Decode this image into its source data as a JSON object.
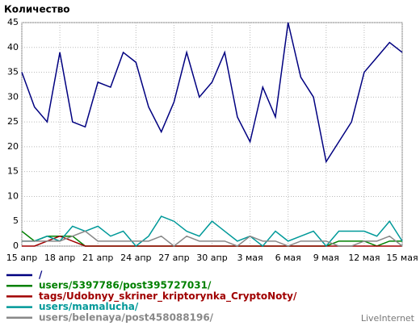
{
  "chart_data": {
    "type": "line",
    "title": "Количество",
    "brand": "LiveInternet",
    "categories": [
      "15 апр",
      null,
      null,
      "18 апр",
      null,
      null,
      "21 апр",
      null,
      null,
      "24 апр",
      null,
      null,
      "27 апр",
      null,
      null,
      "30 апр",
      null,
      null,
      "3 мая",
      null,
      null,
      "6 мая",
      null,
      null,
      "9 мая",
      null,
      null,
      "12 мая",
      null,
      null,
      "15 мая"
    ],
    "ylim": [
      0,
      45
    ],
    "yticks": [
      0,
      5,
      10,
      15,
      20,
      25,
      30,
      35,
      40,
      45
    ],
    "grid": true,
    "series": [
      {
        "name": "/",
        "color": "#000080",
        "values": [
          35,
          28,
          25,
          39,
          25,
          24,
          33,
          32,
          39,
          37,
          28,
          23,
          29,
          39,
          30,
          33,
          39,
          26,
          21,
          32,
          26,
          45,
          34,
          30,
          17,
          21,
          25,
          35,
          38,
          41,
          39
        ]
      },
      {
        "name": "users/5397786/post395727031/",
        "color": "#008000",
        "values": [
          3,
          1,
          2,
          2,
          2,
          0,
          0,
          0,
          0,
          0,
          0,
          0,
          0,
          0,
          0,
          0,
          0,
          0,
          0,
          0,
          0,
          0,
          0,
          0,
          0,
          1,
          1,
          1,
          0,
          1,
          1
        ]
      },
      {
        "name": "tags/Udobnyy_skriner_kriptorynka_CryptoNoty/",
        "color": "#a00000",
        "values": [
          0,
          0,
          1,
          2,
          1,
          0,
          0,
          0,
          0,
          0,
          0,
          0,
          0,
          0,
          0,
          0,
          0,
          0,
          0,
          0,
          0,
          0,
          0,
          0,
          0,
          0,
          0,
          0,
          0,
          0,
          0
        ]
      },
      {
        "name": "users/mamalucha/",
        "color": "#009999",
        "values": [
          1,
          1,
          2,
          1,
          4,
          3,
          4,
          2,
          3,
          0,
          2,
          6,
          5,
          3,
          2,
          5,
          3,
          1,
          2,
          0,
          3,
          1,
          2,
          3,
          0,
          3,
          3,
          3,
          2,
          5,
          1
        ]
      },
      {
        "name": "users/belenaya/post458088196/",
        "color": "#888888",
        "values": [
          1,
          1,
          1,
          1,
          2,
          3,
          1,
          1,
          1,
          1,
          1,
          2,
          0,
          2,
          1,
          1,
          1,
          0,
          2,
          1,
          1,
          0,
          1,
          1,
          1,
          0,
          0,
          1,
          1,
          2,
          0
        ]
      }
    ]
  }
}
